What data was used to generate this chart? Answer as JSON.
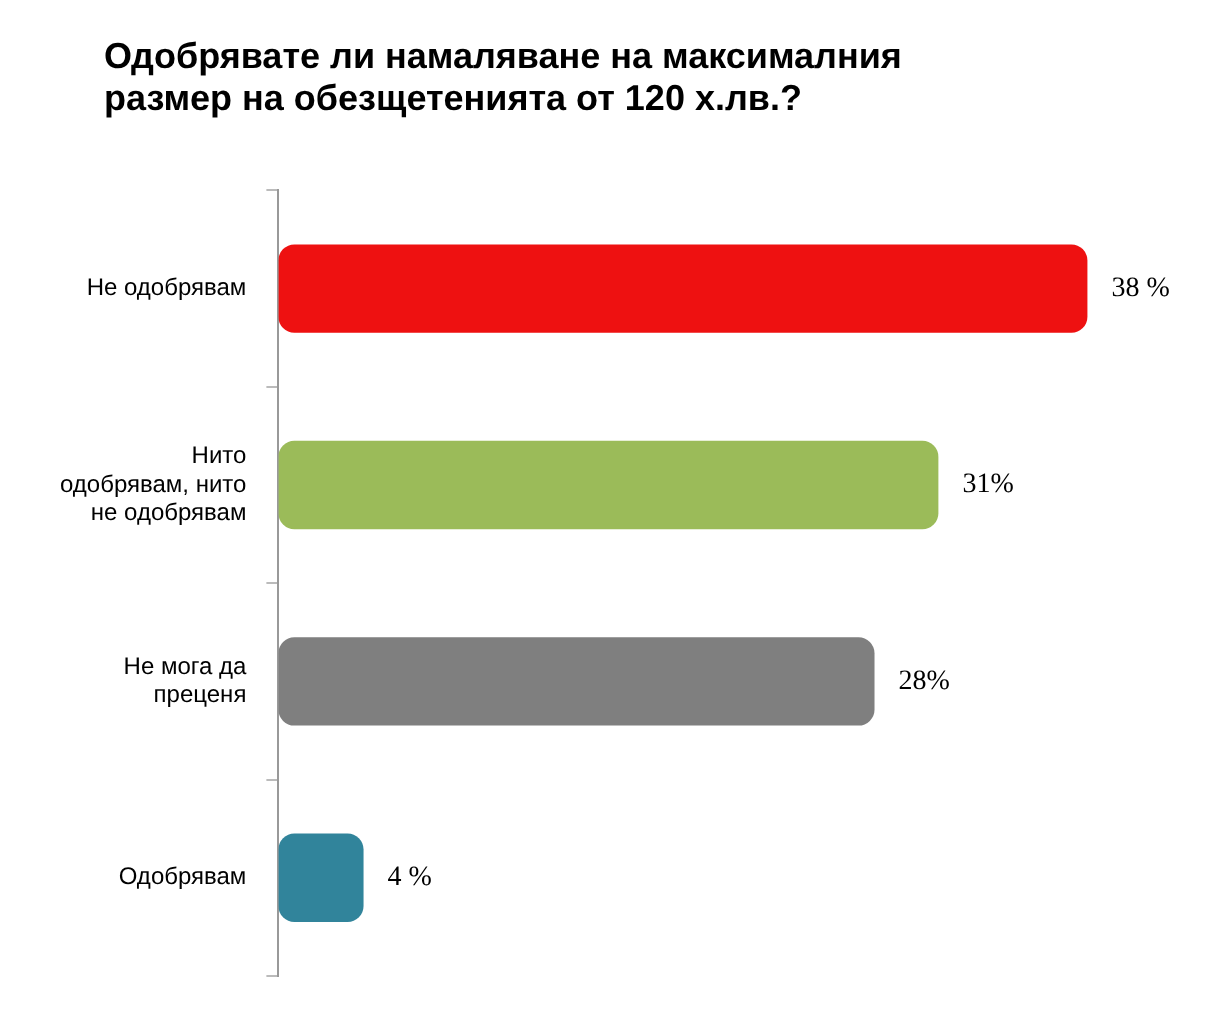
{
  "chart_data": {
    "type": "bar",
    "orientation": "horizontal",
    "title": "Одобрявате ли намаляване на максималния размер на обезщетенията от 120 х.лв.?",
    "categories": [
      "Не одобрявам",
      "Нито одобрявам, нито не одобрявам",
      "Не мога да преценя",
      "Одобрявам"
    ],
    "values": [
      38,
      31,
      28,
      4
    ],
    "colors": [
      "#ee1111",
      "#9bbb59",
      "#7f7f7f",
      "#31849b"
    ],
    "value_labels": [
      "38 %",
      "31%",
      "28%",
      "4 %"
    ],
    "tick_labels": "y",
    "grid": false,
    "legend": false
  }
}
